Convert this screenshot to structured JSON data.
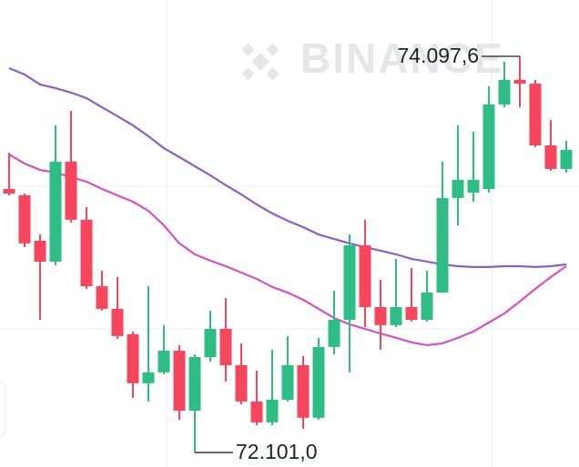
{
  "chart_data": {
    "type": "candlestick",
    "watermark": "BINANCE",
    "ylim": [
      72028,
      74381.5
    ],
    "up_color": "#2ebd85",
    "down_color": "#f6465d",
    "open": [
      73429,
      73397,
      73168,
      73063,
      73567,
      73274,
      72939,
      72825,
      72697,
      72450,
      72505,
      72614,
      72312,
      72582,
      72724,
      72541,
      72358,
      72253,
      72367,
      72541,
      72276,
      72633,
      72770,
      73145,
      72834,
      72743,
      72834,
      72770,
      72907,
      73384,
      73411,
      73429,
      73855,
      73979,
      73960,
      73649,
      73530
    ],
    "high": [
      73612,
      73406,
      73200,
      73750,
      73823,
      73338,
      73017,
      72985,
      72711,
      72939,
      72743,
      72642,
      72596,
      72816,
      72880,
      72651,
      72514,
      72619,
      72688,
      72587,
      72679,
      72917,
      73200,
      73274,
      72972,
      73077,
      73031,
      73017,
      73567,
      73750,
      73718,
      73947,
      74070,
      74097.6,
      73979,
      73777,
      73672
    ],
    "low": [
      73397,
      73136,
      72770,
      73045,
      73260,
      72926,
      72816,
      72674,
      72376,
      72358,
      72495,
      72266,
      72101.0,
      72559,
      72459,
      72344,
      72239,
      72239,
      72358,
      72221,
      72266,
      72596,
      72505,
      72733,
      72619,
      72733,
      72761,
      72761,
      72907,
      73246,
      73365,
      73411,
      73841,
      73841,
      73640,
      73521,
      73512
    ],
    "close": [
      73406,
      73155,
      73063,
      73567,
      73274,
      72939,
      72825,
      72688,
      72450,
      72505,
      72614,
      72312,
      72582,
      72724,
      72541,
      72358,
      72253,
      72367,
      72541,
      72276,
      72633,
      72770,
      73145,
      72834,
      72743,
      72834,
      72770,
      72907,
      73384,
      73475,
      73475,
      73855,
      73979,
      73960,
      73649,
      73530,
      73626
    ],
    "series": [
      {
        "color": "#8e5fc0",
        "values": [
          74038,
          74006,
          73956,
          73937,
          73915,
          73887,
          73841,
          73796,
          73750,
          73695,
          73635,
          73590,
          73544,
          73498,
          73448,
          73402,
          73351,
          73306,
          73269,
          73237,
          73200,
          73177,
          73155,
          73136,
          73118,
          73100,
          73077,
          73063,
          73049,
          73040,
          73036,
          73036,
          73040,
          73040,
          73036,
          73040,
          73049
        ]
      },
      {
        "color": "#d84fc4",
        "values": [
          73603,
          73557,
          73525,
          73512,
          73489,
          73466,
          73429,
          73397,
          73365,
          73319,
          73246,
          73155,
          73100,
          73068,
          73040,
          73008,
          72976,
          72935,
          72907,
          72871,
          72825,
          72779,
          72747,
          72724,
          72701,
          72679,
          72656,
          72642,
          72651,
          72679,
          72711,
          72756,
          72802,
          72862,
          72926,
          72985,
          73040
        ]
      }
    ],
    "annotations": [
      {
        "value": 74097.6,
        "label": "74.097,6"
      },
      {
        "value": 72101.0,
        "label": "72.101,0"
      }
    ]
  }
}
